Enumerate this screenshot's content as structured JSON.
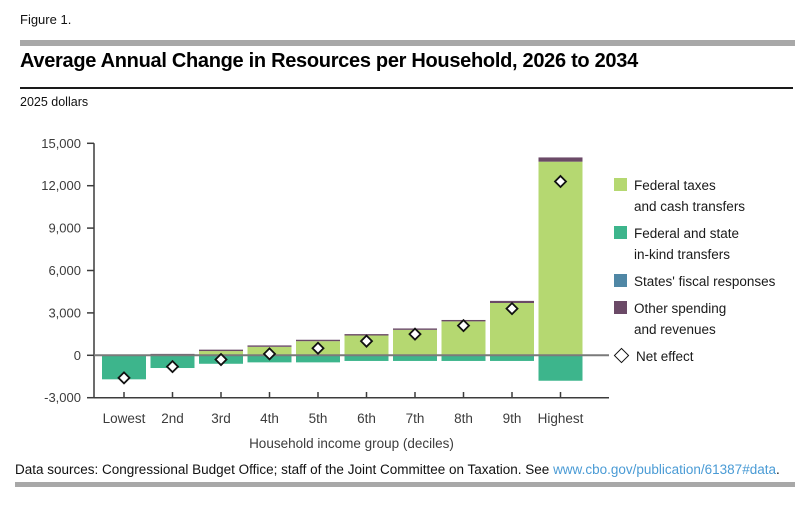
{
  "page": {
    "figure_label": "Figure 1.",
    "title": "Average Annual Change in Resources per Household, 2026 to 2034",
    "units_label": "2025 dollars",
    "footer_prefix": "Data sources: Congressional Budget Office; staff of the Joint Committee on Taxation. See ",
    "footer_link": "www.cbo.gov/publication/61387#data",
    "footer_suffix": "."
  },
  "colors": {
    "federal_taxes": "#b5d871",
    "in_kind": "#3db58c",
    "states_fiscal": "#4f87a5",
    "other_spending": "#6b4a67",
    "zero_line": "#7a7a7a",
    "axis": "#3c3c3c",
    "rule": "#a8a8a8",
    "link": "#4a9bd5",
    "diamond_stroke": "#111111",
    "diamond_fill": "#ffffff"
  },
  "chart_data": {
    "type": "bar",
    "stacked": true,
    "title": "Average Annual Change in Resources per Household, 2026 to 2034",
    "ylabel": "2025 dollars",
    "xlabel": "Household income group (deciles)",
    "ylim": [
      -3000,
      15000
    ],
    "ytick_step": 3000,
    "grid": "zero-line-only",
    "legend_position": "right",
    "yticks": [
      {
        "value": 15000,
        "label": "15,000"
      },
      {
        "value": 12000,
        "label": "12,000"
      },
      {
        "value": 9000,
        "label": "9,000"
      },
      {
        "value": 6000,
        "label": "6,000"
      },
      {
        "value": 3000,
        "label": "3,000"
      },
      {
        "value": 0,
        "label": "0"
      },
      {
        "value": -3000,
        "label": "-3,000"
      }
    ],
    "categories": [
      "Lowest",
      "2nd",
      "3rd",
      "4th",
      "5th",
      "6th",
      "7th",
      "8th",
      "9th",
      "Highest"
    ],
    "series": [
      {
        "name": "Federal taxes and cash transfers",
        "color_key": "federal_taxes",
        "values": [
          0,
          0,
          300,
          600,
          1000,
          1400,
          1800,
          2400,
          3700,
          13700
        ]
      },
      {
        "name": "Federal and state in-kind transfers",
        "color_key": "in_kind",
        "values": [
          -1700,
          -900,
          -600,
          -500,
          -500,
          -400,
          -400,
          -400,
          -400,
          -1800
        ]
      },
      {
        "name": "States' fiscal responses",
        "color_key": "states_fiscal",
        "values": [
          0,
          0,
          0,
          0,
          0,
          0,
          0,
          0,
          0,
          0
        ]
      },
      {
        "name": "Other spending and revenues",
        "color_key": "other_spending",
        "values": [
          0,
          100,
          100,
          100,
          100,
          100,
          100,
          100,
          150,
          300
        ]
      }
    ],
    "net_effect": {
      "name": "Net effect",
      "marker": "diamond",
      "values": [
        -1600,
        -800,
        -300,
        100,
        500,
        1000,
        1500,
        2100,
        3300,
        12300
      ]
    },
    "legend": [
      {
        "lines": [
          "Federal taxes",
          "and cash transfers"
        ],
        "swatch": "federal_taxes"
      },
      {
        "lines": [
          "Federal and state",
          "in-kind transfers"
        ],
        "swatch": "in_kind"
      },
      {
        "lines": [
          "States' fiscal responses"
        ],
        "swatch": "states_fiscal"
      },
      {
        "lines": [
          "Other spending",
          "and revenues"
        ],
        "swatch": "other_spending"
      },
      {
        "lines": [
          "Net effect"
        ],
        "swatch": "diamond"
      }
    ]
  }
}
